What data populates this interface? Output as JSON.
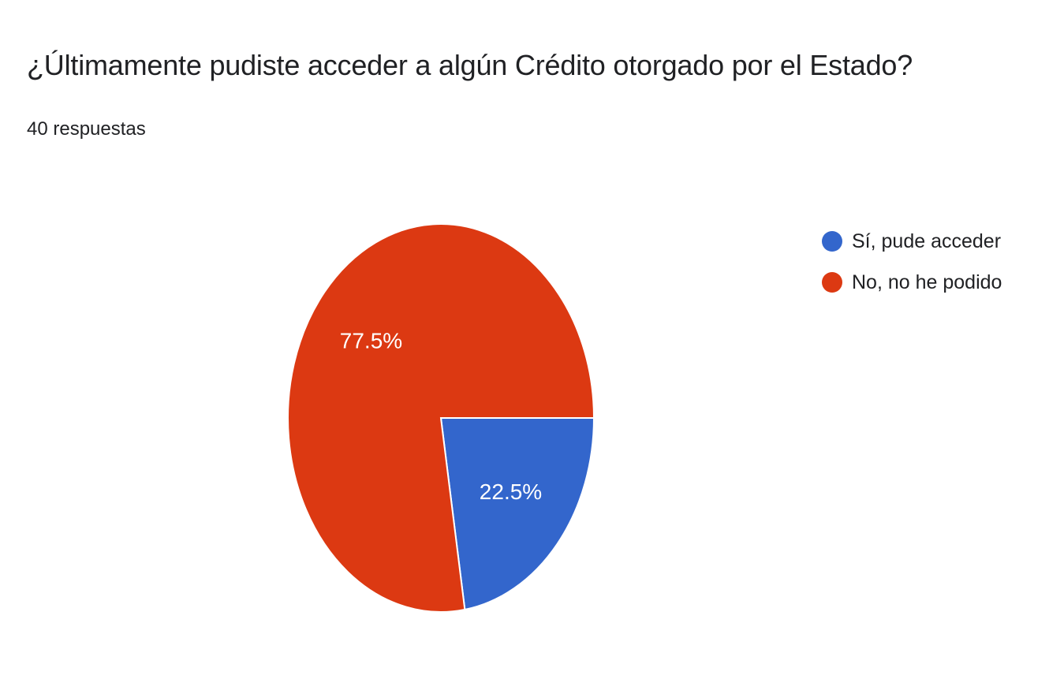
{
  "question": {
    "title": "¿Últimamente pudiste acceder a algún Crédito otorgado por el Estado?",
    "response_count": "40 respuestas"
  },
  "chart_data": {
    "type": "pie",
    "categories": [
      "Sí, pude acceder",
      "No, no he podido"
    ],
    "values": [
      22.5,
      77.5
    ],
    "value_labels": [
      "22.5%",
      "77.5%"
    ],
    "colors": [
      "#3366cc",
      "#dc3912"
    ],
    "legend_position": "right"
  }
}
